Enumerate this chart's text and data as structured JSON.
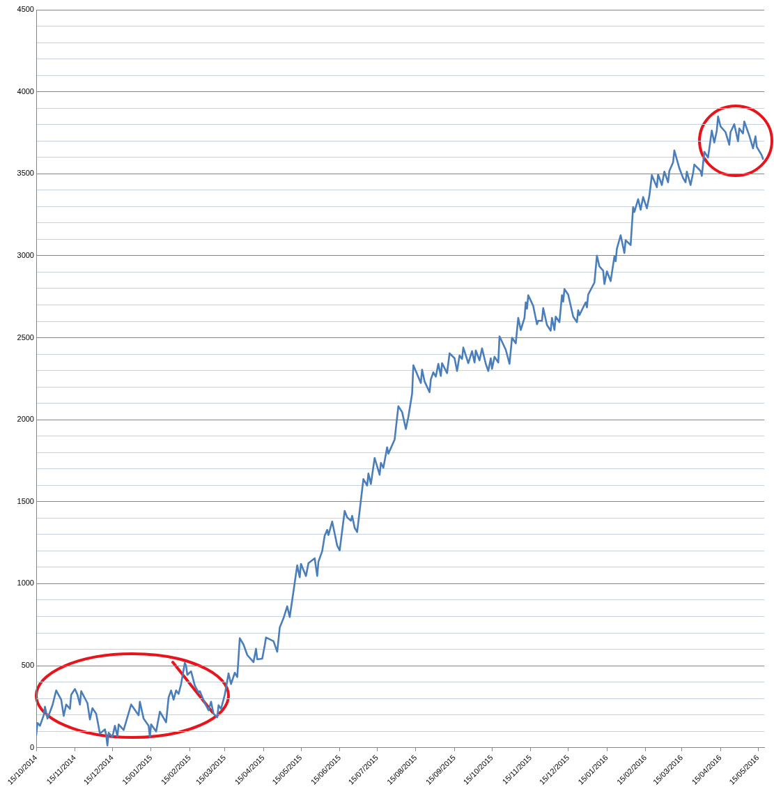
{
  "chart_data": {
    "type": "line",
    "x": [
      "2014-10-15",
      "2014-10-16",
      "2014-10-18",
      "2014-10-21",
      "2014-10-22",
      "2014-10-24",
      "2014-10-28",
      "2014-10-31",
      "2014-11-04",
      "2014-11-06",
      "2014-11-08",
      "2014-11-11",
      "2014-11-12",
      "2014-11-15",
      "2014-11-17",
      "2014-11-19",
      "2014-11-20",
      "2014-11-25",
      "2014-11-27",
      "2014-11-29",
      "2014-12-02",
      "2014-12-05",
      "2014-12-09",
      "2014-12-10",
      "2014-12-11",
      "2014-12-12",
      "2014-12-15",
      "2014-12-17",
      "2014-12-19",
      "2014-12-20",
      "2014-12-24",
      "2014-12-30",
      "2015-01-05",
      "2015-01-06",
      "2015-01-09",
      "2015-01-13",
      "2015-01-14",
      "2015-01-15",
      "2015-01-19",
      "2015-01-22",
      "2015-01-27",
      "2015-01-29",
      "2015-01-31",
      "2015-02-02",
      "2015-02-04",
      "2015-02-06",
      "2015-02-08",
      "2015-02-11",
      "2015-02-12",
      "2015-02-13",
      "2015-02-16",
      "2015-02-19",
      "2015-02-22",
      "2015-02-23",
      "2015-02-27",
      "2015-03-02",
      "2015-03-04",
      "2015-03-06",
      "2015-03-09",
      "2015-03-10",
      "2015-03-12",
      "2015-03-15",
      "2015-03-18",
      "2015-03-20",
      "2015-03-23",
      "2015-03-25",
      "2015-03-27",
      "2015-03-30",
      "2015-04-02",
      "2015-04-07",
      "2015-04-09",
      "2015-04-10",
      "2015-04-14",
      "2015-04-16",
      "2015-04-17",
      "2015-04-23",
      "2015-04-26",
      "2015-04-28",
      "2015-05-01",
      "2015-05-04",
      "2015-05-06",
      "2015-05-09",
      "2015-05-12",
      "2015-05-14",
      "2015-05-15",
      "2015-05-19",
      "2015-05-21",
      "2015-05-26",
      "2015-05-28",
      "2015-05-29",
      "2015-06-01",
      "2015-06-03",
      "2015-06-05",
      "2015-06-06",
      "2015-06-09",
      "2015-06-13",
      "2015-06-15",
      "2015-06-19",
      "2015-06-21",
      "2015-06-24",
      "2015-06-25",
      "2015-06-27",
      "2015-06-29",
      "2015-07-04",
      "2015-07-07",
      "2015-07-08",
      "2015-07-10",
      "2015-07-13",
      "2015-07-17",
      "2015-07-18",
      "2015-07-20",
      "2015-07-23",
      "2015-07-24",
      "2015-07-29",
      "2015-08-01",
      "2015-08-04",
      "2015-08-07",
      "2015-08-09",
      "2015-08-12",
      "2015-08-13",
      "2015-08-19",
      "2015-08-20",
      "2015-08-22",
      "2015-08-26",
      "2015-08-27",
      "2015-08-29",
      "2015-08-31",
      "2015-09-02",
      "2015-09-04",
      "2015-09-05",
      "2015-09-09",
      "2015-09-11",
      "2015-09-15",
      "2015-09-17",
      "2015-09-19",
      "2015-09-21",
      "2015-09-22",
      "2015-09-26",
      "2015-09-29",
      "2015-10-01",
      "2015-10-02",
      "2015-10-05",
      "2015-10-07",
      "2015-10-10",
      "2015-10-12",
      "2015-10-14",
      "2015-10-15",
      "2015-10-17",
      "2015-10-20",
      "2015-10-21",
      "2015-10-26",
      "2015-10-29",
      "2015-10-31",
      "2015-11-03",
      "2015-11-05",
      "2015-11-07",
      "2015-11-10",
      "2015-11-11",
      "2015-11-12",
      "2015-11-13",
      "2015-11-17",
      "2015-11-20",
      "2015-11-21",
      "2015-11-24",
      "2015-11-25",
      "2015-11-28",
      "2015-12-01",
      "2015-12-02",
      "2015-12-04",
      "2015-12-05",
      "2015-12-08",
      "2015-12-10",
      "2015-12-11",
      "2015-12-12",
      "2015-12-15",
      "2015-12-19",
      "2015-12-22",
      "2015-12-23",
      "2015-12-24",
      "2015-12-29",
      "2015-12-30",
      "2015-12-31",
      "2016-01-05",
      "2016-01-07",
      "2016-01-09",
      "2016-01-12",
      "2016-01-13",
      "2016-01-15",
      "2016-01-18",
      "2016-01-21",
      "2016-01-22",
      "2016-01-23",
      "2016-01-26",
      "2016-01-29",
      "2016-01-30",
      "2016-02-03",
      "2016-02-05",
      "2016-02-06",
      "2016-02-09",
      "2016-02-11",
      "2016-02-13",
      "2016-02-16",
      "2016-02-18",
      "2016-02-20",
      "2016-02-24",
      "2016-02-25",
      "2016-02-28",
      "2016-03-01",
      "2016-03-04",
      "2016-03-05",
      "2016-03-08",
      "2016-03-09",
      "2016-03-13",
      "2016-03-16",
      "2016-03-18",
      "2016-03-19",
      "2016-03-22",
      "2016-03-24",
      "2016-03-25",
      "2016-03-30",
      "2016-03-31",
      "2016-04-02",
      "2016-04-05",
      "2016-04-08",
      "2016-04-10",
      "2016-04-12",
      "2016-04-13",
      "2016-04-15",
      "2016-04-19",
      "2016-04-22",
      "2016-04-23",
      "2016-04-26",
      "2016-04-29",
      "2016-04-30",
      "2016-05-03",
      "2016-05-04",
      "2016-05-08",
      "2016-05-11",
      "2016-05-13",
      "2016-05-14",
      "2016-05-18",
      "2016-05-19"
    ],
    "series": [
      {
        "color": "#4a7ebb",
        "values": [
          78,
          151,
          134,
          198,
          250,
          177,
          259,
          349,
          293,
          194,
          263,
          237,
          323,
          358,
          323,
          263,
          345,
          272,
          172,
          241,
          207,
          86,
          112,
          78,
          13,
          91,
          65,
          134,
          69,
          142,
          108,
          263,
          198,
          280,
          177,
          134,
          65,
          142,
          99,
          220,
          155,
          306,
          349,
          293,
          349,
          328,
          388,
          517,
          500,
          444,
          466,
          379,
          336,
          345,
          272,
          228,
          280,
          207,
          185,
          259,
          237,
          323,
          453,
          388,
          457,
          431,
          668,
          629,
          565,
          522,
          603,
          539,
          543,
          625,
          672,
          650,
          585,
          733,
          789,
          862,
          797,
          953,
          1112,
          1039,
          1121,
          1047,
          1125,
          1155,
          1047,
          1134,
          1198,
          1293,
          1328,
          1297,
          1379,
          1233,
          1203,
          1444,
          1405,
          1384,
          1414,
          1341,
          1315,
          1638,
          1599,
          1672,
          1608,
          1767,
          1664,
          1737,
          1707,
          1832,
          1793,
          1879,
          2082,
          2047,
          1944,
          2017,
          2159,
          2332,
          2224,
          2306,
          2233,
          2168,
          2246,
          2289,
          2263,
          2341,
          2267,
          2345,
          2284,
          2405,
          2375,
          2297,
          2392,
          2371,
          2440,
          2345,
          2418,
          2349,
          2422,
          2362,
          2435,
          2341,
          2297,
          2375,
          2310,
          2384,
          2349,
          2509,
          2427,
          2341,
          2500,
          2466,
          2621,
          2547,
          2621,
          2716,
          2677,
          2759,
          2694,
          2582,
          2603,
          2603,
          2681,
          2578,
          2543,
          2621,
          2547,
          2629,
          2595,
          2759,
          2720,
          2797,
          2763,
          2629,
          2595,
          2668,
          2638,
          2716,
          2685,
          2763,
          2836,
          3000,
          2935,
          2909,
          2828,
          2905,
          2845,
          2996,
          2966,
          3043,
          3125,
          3017,
          3095,
          3065,
          3297,
          3267,
          3345,
          3280,
          3358,
          3289,
          3366,
          3491,
          3418,
          3496,
          3431,
          3513,
          3448,
          3517,
          3569,
          3642,
          3534,
          3474,
          3448,
          3513,
          3431,
          3504,
          3556,
          3517,
          3487,
          3634,
          3599,
          3763,
          3690,
          3763,
          3849,
          3789,
          3754,
          3677,
          3754,
          3802,
          3698,
          3776,
          3746,
          3819,
          3733,
          3655,
          3728,
          3664,
          3612,
          3590
        ]
      }
    ],
    "xlim": [
      "2014-10-15",
      "2016-05-20"
    ],
    "xticks": [
      {
        "value": "2014-10-15",
        "label": "15/10/2014"
      },
      {
        "value": "2014-11-15",
        "label": "15/11/2014"
      },
      {
        "value": "2014-12-15",
        "label": "15/12/2014"
      },
      {
        "value": "2015-01-15",
        "label": "15/01/2015"
      },
      {
        "value": "2015-02-15",
        "label": "15/02/2015"
      },
      {
        "value": "2015-03-15",
        "label": "15/03/2015"
      },
      {
        "value": "2015-04-15",
        "label": "15/04/2015"
      },
      {
        "value": "2015-05-15",
        "label": "15/05/2015"
      },
      {
        "value": "2015-06-15",
        "label": "15/06/2015"
      },
      {
        "value": "2015-07-15",
        "label": "15/07/2015"
      },
      {
        "value": "2015-08-15",
        "label": "15/08/2015"
      },
      {
        "value": "2015-09-15",
        "label": "15/09/2015"
      },
      {
        "value": "2015-10-15",
        "label": "15/10/2015"
      },
      {
        "value": "2015-11-15",
        "label": "15/11/2015"
      },
      {
        "value": "2015-12-15",
        "label": "15/12/2015"
      },
      {
        "value": "2016-01-15",
        "label": "15/01/2016"
      },
      {
        "value": "2016-02-15",
        "label": "15/02/2016"
      },
      {
        "value": "2016-03-15",
        "label": "15/03/2016"
      },
      {
        "value": "2016-04-15",
        "label": "15/04/2016"
      },
      {
        "value": "2016-05-15",
        "label": "15/05/2016"
      }
    ],
    "ylim": [
      0,
      4500
    ],
    "yticks": [
      0,
      {
        "value": 100,
        "label": null
      },
      {
        "value": 200,
        "label": null
      },
      {
        "value": 300,
        "label": null
      },
      {
        "value": 400,
        "label": null
      },
      500,
      {
        "value": 600,
        "label": null
      },
      {
        "value": 700,
        "label": null
      },
      {
        "value": 800,
        "label": null
      },
      {
        "value": 900,
        "label": null
      },
      1000,
      {
        "value": 1100,
        "label": null
      },
      {
        "value": 1200,
        "label": null
      },
      {
        "value": 1300,
        "label": null
      },
      {
        "value": 1400,
        "label": null
      },
      1500,
      {
        "value": 1600,
        "label": null
      },
      {
        "value": 1700,
        "label": null
      },
      {
        "value": 1800,
        "label": null
      },
      {
        "value": 1900,
        "label": null
      },
      2000,
      {
        "value": 2100,
        "label": null
      },
      {
        "value": 2200,
        "label": null
      },
      {
        "value": 2300,
        "label": null
      },
      {
        "value": 2400,
        "label": null
      },
      2500,
      {
        "value": 2600,
        "label": null
      },
      {
        "value": 2700,
        "label": null
      },
      {
        "value": 2800,
        "label": null
      },
      {
        "value": 2900,
        "label": null
      },
      3000,
      {
        "value": 3100,
        "label": null
      },
      {
        "value": 3200,
        "label": null
      },
      {
        "value": 3300,
        "label": null
      },
      {
        "value": 3400,
        "label": null
      },
      3500,
      {
        "value": 3600,
        "label": null
      },
      {
        "value": 3700,
        "label": null
      },
      {
        "value": 3800,
        "label": null
      },
      {
        "value": 3900,
        "label": null
      },
      4000,
      {
        "value": 4100,
        "label": null
      },
      {
        "value": 4200,
        "label": null
      },
      {
        "value": 4300,
        "label": null
      },
      {
        "value": 4400,
        "label": null
      },
      4500
    ],
    "grid": "y",
    "legend": false,
    "marker": "none",
    "line_style": "solid"
  }
}
